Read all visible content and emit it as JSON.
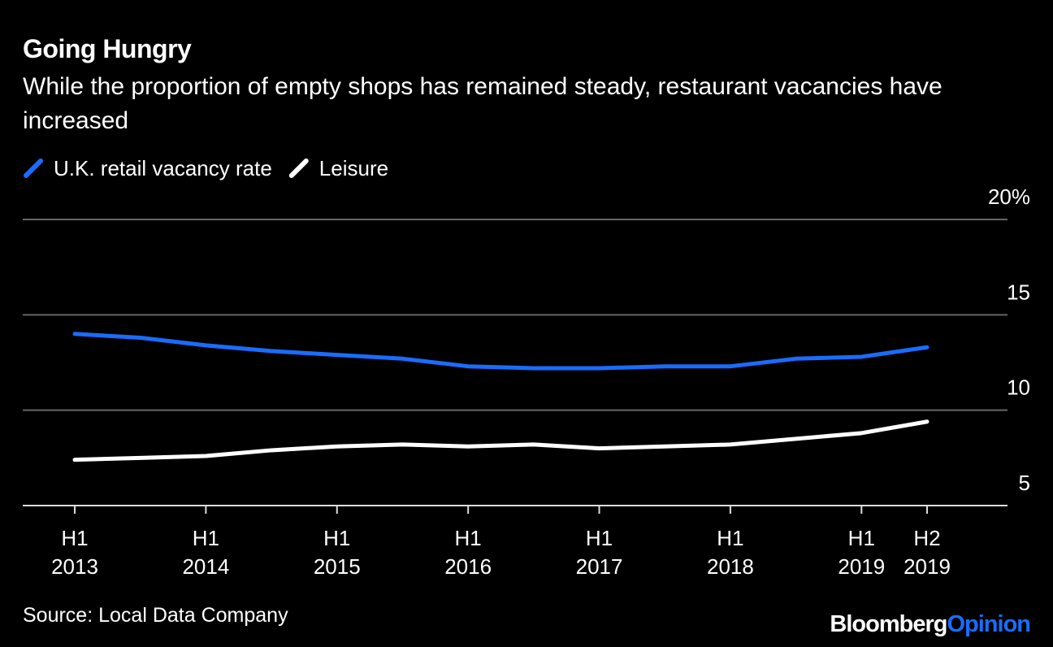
{
  "chart_data": {
    "type": "line",
    "title": "Going Hungry",
    "subtitle": "While the proportion of empty shops has remained steady, restaurant vacancies have increased",
    "categories": [
      "H1 2013",
      null,
      "H1 2014",
      null,
      "H1 2015",
      null,
      "H1 2016",
      null,
      "H1 2017",
      null,
      "H1 2018",
      null,
      "H1 2019",
      "H2 2019"
    ],
    "series": [
      {
        "name": "U.K. retail vacancy rate",
        "color": "#1a6cff",
        "values": [
          14.0,
          13.8,
          13.4,
          13.1,
          12.9,
          12.7,
          12.3,
          12.2,
          12.2,
          12.3,
          12.3,
          12.7,
          12.8,
          13.3
        ]
      },
      {
        "name": "Leisure",
        "color": "#ffffff",
        "values": [
          7.4,
          7.5,
          7.6,
          7.9,
          8.1,
          8.2,
          8.1,
          8.2,
          8.0,
          8.1,
          8.2,
          8.5,
          8.8,
          9.4
        ]
      }
    ],
    "ylim": [
      5,
      20
    ],
    "yticks": [
      5,
      10,
      15,
      {
        "value": 20,
        "label": "20%"
      }
    ],
    "grid": true,
    "source": "Source: Local Data Company",
    "brand": {
      "name": "Bloomberg",
      "section": "Opinion",
      "section_color": "#1a6cff"
    }
  }
}
